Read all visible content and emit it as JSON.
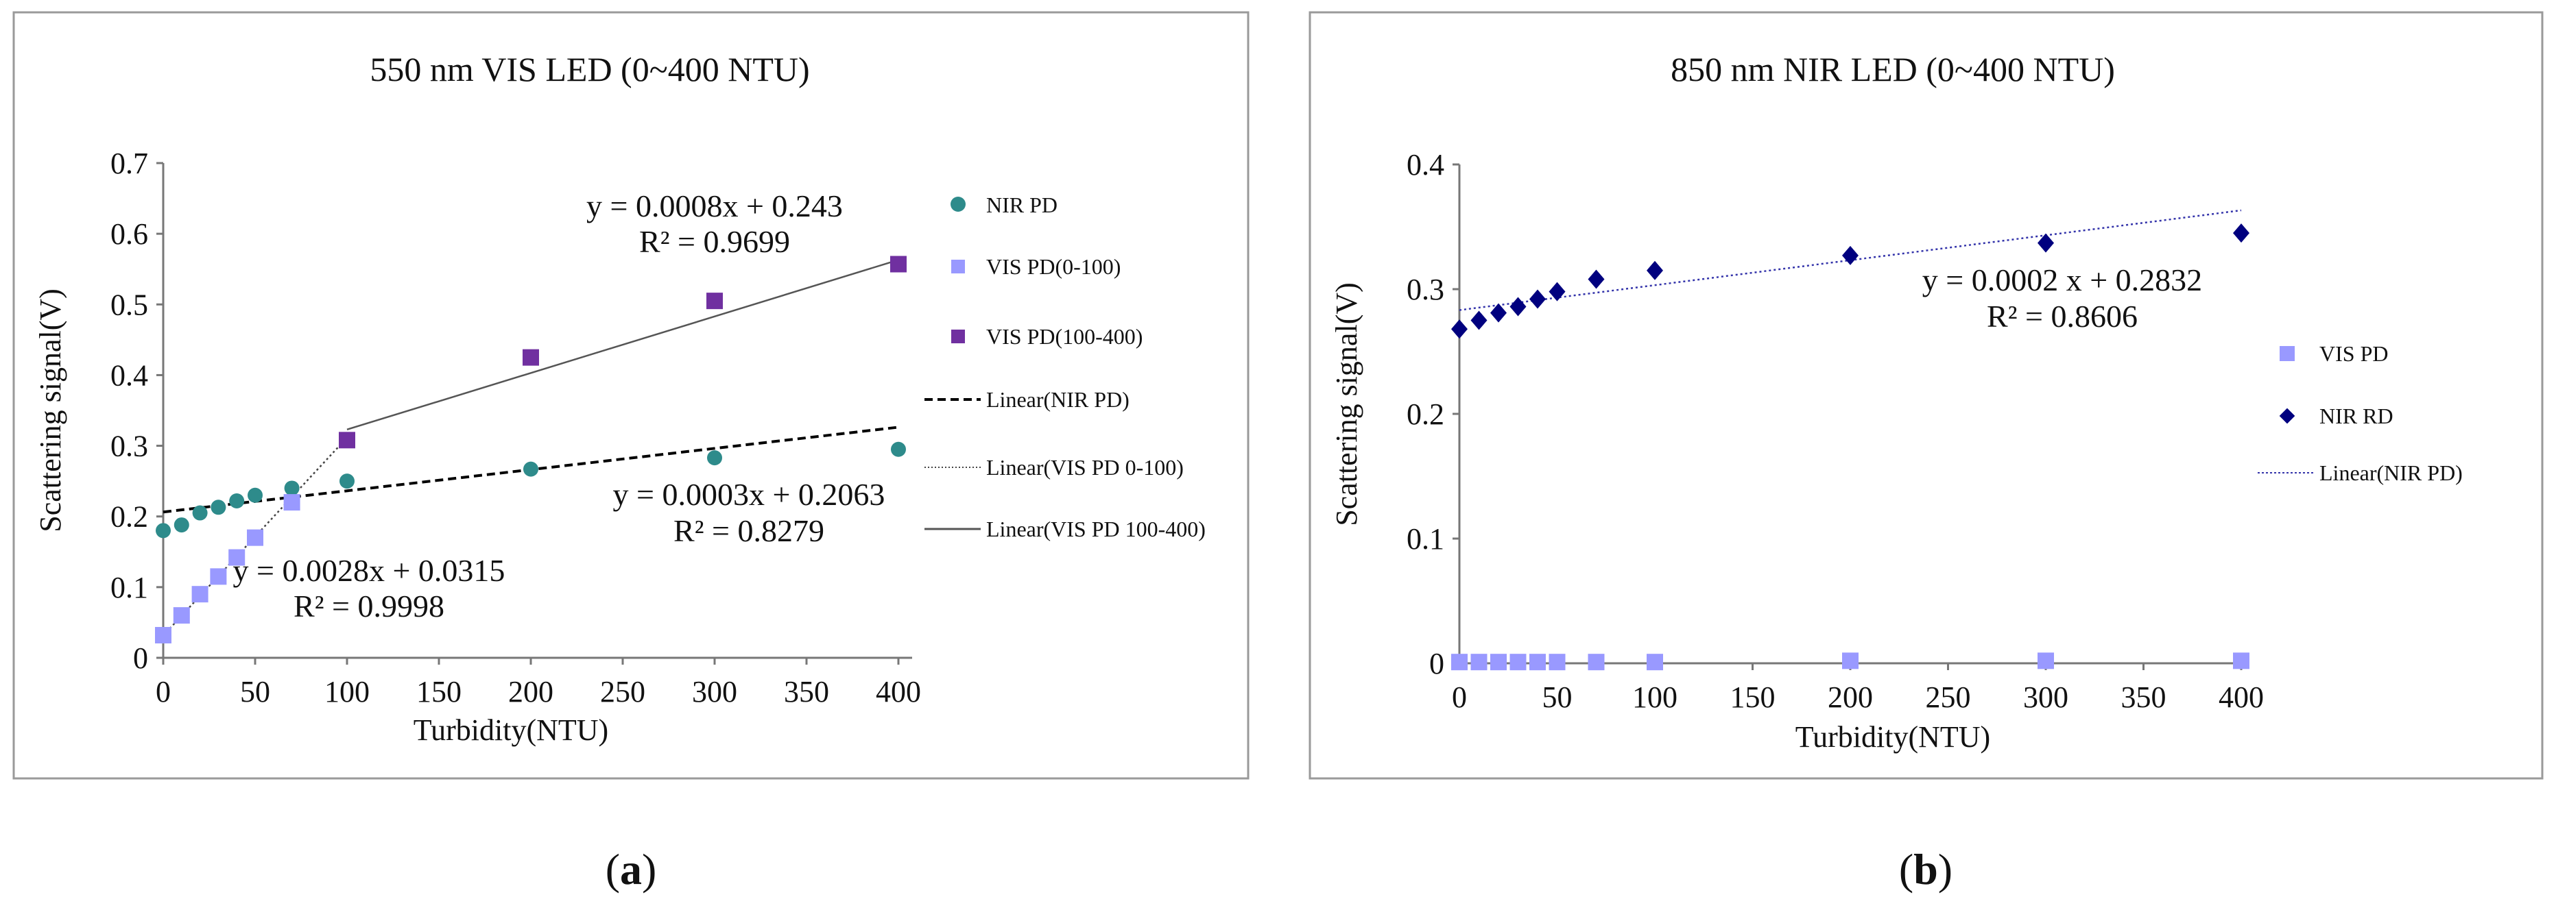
{
  "chart_data": [
    {
      "type": "scatter",
      "panel": "a",
      "panel_label": "a",
      "title": "550 nm VIS LED (0~400 NTU)",
      "xlabel": "Turbidity(NTU)",
      "ylabel": "Scattering signal(V)",
      "xlim": [
        0,
        400
      ],
      "ylim": [
        0,
        0.7
      ],
      "xticks": [
        0,
        50,
        100,
        150,
        200,
        250,
        300,
        350,
        400
      ],
      "yticks": [
        0,
        0.1,
        0.2,
        0.3,
        0.4,
        0.5,
        0.6,
        0.7
      ],
      "series": [
        {
          "name": "NIR PD",
          "marker": "circle",
          "color": "#2E8B8B",
          "x": [
            0,
            10,
            20,
            30,
            40,
            50,
            70,
            100,
            200,
            300,
            400
          ],
          "y": [
            0.18,
            0.188,
            0.205,
            0.213,
            0.222,
            0.23,
            0.24,
            0.25,
            0.267,
            0.283,
            0.295
          ]
        },
        {
          "name": "VIS PD(0-100)",
          "marker": "square",
          "color": "#9999FF",
          "x": [
            0,
            10,
            20,
            30,
            40,
            50,
            70
          ],
          "y": [
            0.032,
            0.06,
            0.09,
            0.115,
            0.142,
            0.17,
            0.22
          ]
        },
        {
          "name": "VIS PD(100-400)",
          "marker": "square",
          "color": "#7030A0",
          "x": [
            100,
            200,
            300,
            400
          ],
          "y": [
            0.308,
            0.425,
            0.505,
            0.557
          ]
        }
      ],
      "trendlines": [
        {
          "name": "Linear(NIR  PD)",
          "style": "dashed",
          "color": "#000000",
          "slope": 0.0003,
          "intercept": 0.2063,
          "x_range": [
            0,
            400
          ]
        },
        {
          "name": "Linear(VIS  PD 0-100)",
          "style": "dotted",
          "color": "#444444",
          "slope": 0.0028,
          "intercept": 0.0315,
          "x_range": [
            0,
            100
          ]
        },
        {
          "name": "Linear(VIS  PD 100-400)",
          "style": "solid",
          "color": "#555555",
          "slope": 0.0008,
          "intercept": 0.243,
          "x_range": [
            100,
            400
          ]
        }
      ],
      "annotations": [
        {
          "text": "y = 0.0008x + 0.243",
          "r2": "R² = 0.9699"
        },
        {
          "text": "y = 0.0003x + 0.2063",
          "r2": "R² = 0.8279"
        },
        {
          "text": "y = 0.0028x + 0.0315",
          "r2": "R² = 0.9998"
        }
      ],
      "legend": "right"
    },
    {
      "type": "scatter",
      "panel": "b",
      "panel_label": "b",
      "title": "850 nm NIR LED (0~400 NTU)",
      "xlabel": "Turbidity(NTU)",
      "ylabel": "Scattering signal(V)",
      "xlim": [
        0,
        400
      ],
      "ylim": [
        0,
        0.4
      ],
      "xticks": [
        0,
        50,
        100,
        150,
        200,
        250,
        300,
        350,
        400
      ],
      "yticks": [
        0,
        0.1,
        0.2,
        0.3,
        0.4
      ],
      "series": [
        {
          "name": "VIS PD",
          "marker": "square",
          "color": "#9999FF",
          "x": [
            0,
            10,
            20,
            30,
            40,
            50,
            70,
            100,
            200,
            300,
            400
          ],
          "y": [
            0.001,
            0.001,
            0.001,
            0.001,
            0.001,
            0.001,
            0.001,
            0.001,
            0.002,
            0.002,
            0.002
          ]
        },
        {
          "name": "NIR RD",
          "marker": "diamond",
          "color": "#00007F",
          "x": [
            0,
            10,
            20,
            30,
            40,
            50,
            70,
            100,
            200,
            300,
            400
          ],
          "y": [
            0.268,
            0.275,
            0.281,
            0.286,
            0.292,
            0.298,
            0.308,
            0.315,
            0.327,
            0.337,
            0.345
          ]
        }
      ],
      "trendlines": [
        {
          "name": "Linear(NIR  PD)",
          "style": "dotted",
          "color": "#3333AA",
          "slope": 0.0002,
          "intercept": 0.2832,
          "x_range": [
            0,
            400
          ]
        }
      ],
      "annotations": [
        {
          "text": "y = 0.0002 x + 0.2832",
          "r2": "R² = 0.8606"
        }
      ],
      "legend": "right"
    }
  ]
}
